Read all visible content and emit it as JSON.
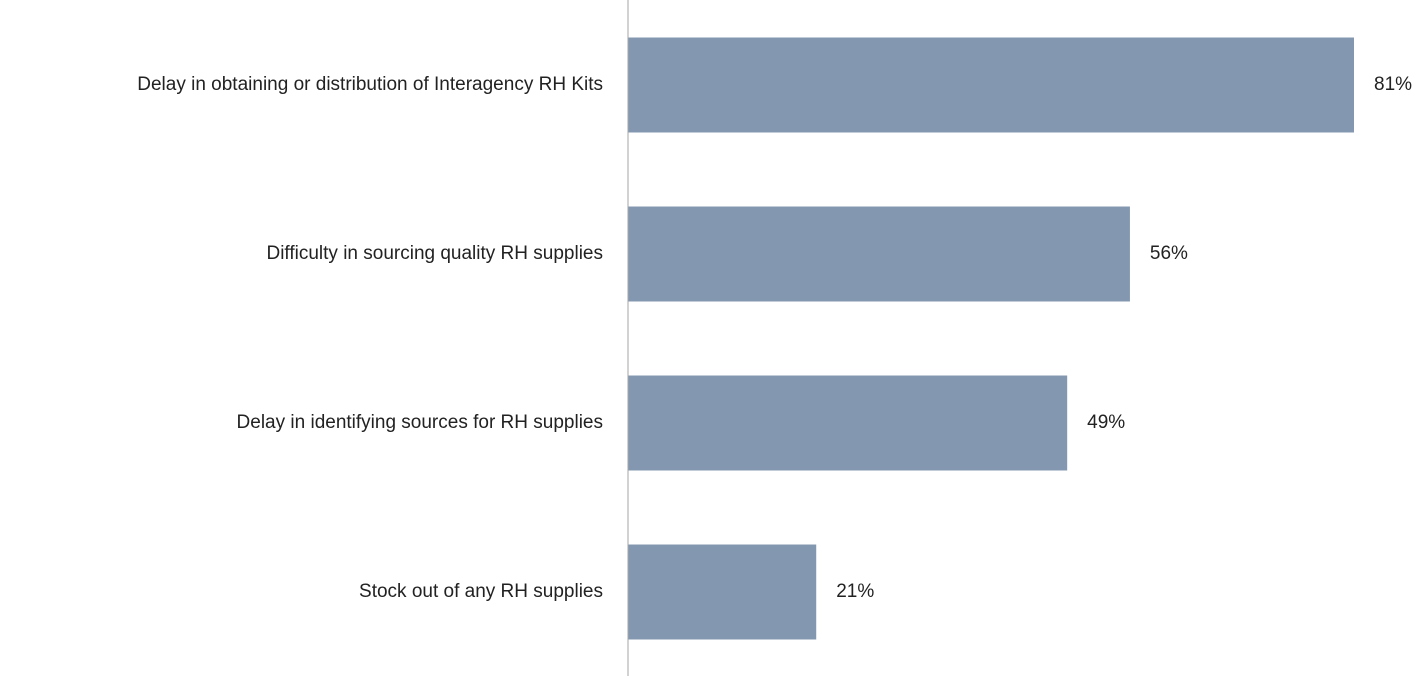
{
  "chart_data": {
    "type": "bar",
    "orientation": "horizontal",
    "categories": [
      "Delay in obtaining or distribution of Interagency RH Kits",
      "Difficulty in sourcing quality RH supplies",
      "Delay in identifying sources for RH supplies",
      "Stock out of any RH supplies"
    ],
    "values": [
      81,
      56,
      49,
      21
    ],
    "value_labels": [
      "81%",
      "56%",
      "49%",
      "21%"
    ],
    "color": "#8497b0"
  }
}
